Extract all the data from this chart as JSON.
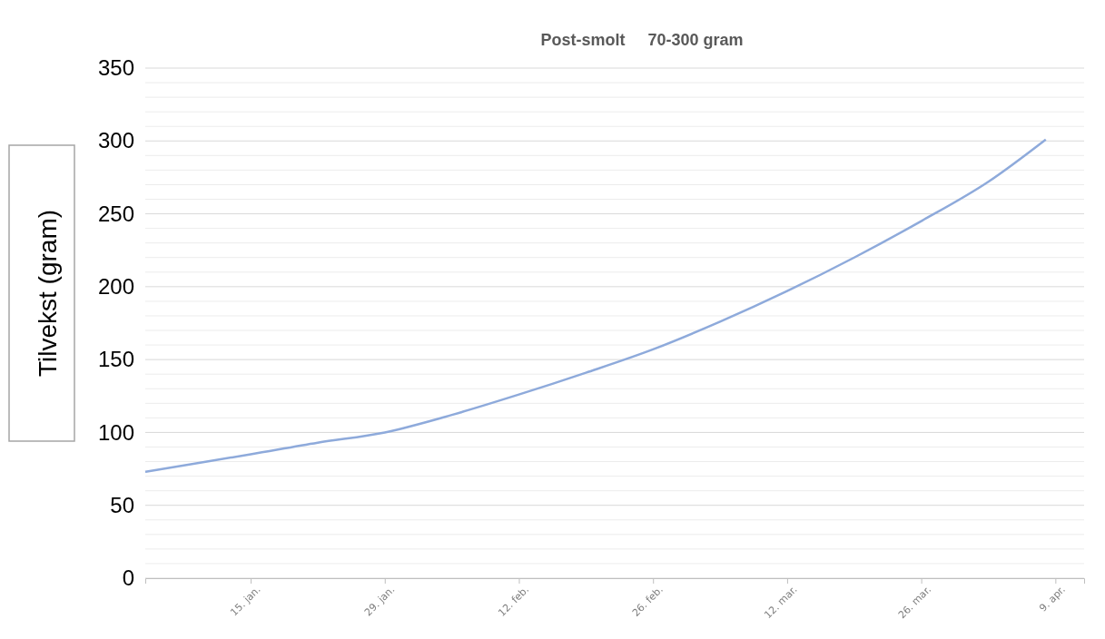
{
  "chart_data": {
    "type": "line",
    "title": "Post-smolt     70-300 gram",
    "ylabel": "Tilvekst (gram)",
    "x": [
      "--01-04",
      "--01-15",
      "--01-22",
      "--01-29",
      "--02-05",
      "--02-12",
      "--02-19",
      "--02-26",
      "--03-05",
      "--03-12",
      "--03-19",
      "--03-26",
      "--04-02",
      "--04-08"
    ],
    "series": [
      {
        "color": "#8eaadb",
        "values": [
          73,
          85,
          93,
          100,
          112,
          126,
          141,
          157,
          176,
          197,
          220,
          245,
          272,
          301
        ]
      }
    ],
    "xlim": [
      "--01-04",
      "--04-12"
    ],
    "xticks": [
      {
        "value": "--01-15",
        "label": "15. jan."
      },
      {
        "value": "--01-29",
        "label": "29. jan."
      },
      {
        "value": "--02-12",
        "label": "12. feb."
      },
      {
        "value": "--02-26",
        "label": "26. feb."
      },
      {
        "value": "--03-12",
        "label": "12. mar."
      },
      {
        "value": "--03-26",
        "label": "26. mar."
      },
      {
        "value": "--04-09",
        "label": "9. apr."
      }
    ],
    "ylim": [
      0,
      350
    ],
    "yticks": [
      0,
      {
        "value": 10,
        "label": null
      },
      {
        "value": 20,
        "label": null
      },
      {
        "value": 30,
        "label": null
      },
      {
        "value": 40,
        "label": null
      },
      50,
      {
        "value": 60,
        "label": null
      },
      {
        "value": 70,
        "label": null
      },
      {
        "value": 80,
        "label": null
      },
      {
        "value": 90,
        "label": null
      },
      100,
      {
        "value": 110,
        "label": null
      },
      {
        "value": 120,
        "label": null
      },
      {
        "value": 130,
        "label": null
      },
      {
        "value": 140,
        "label": null
      },
      150,
      {
        "value": 160,
        "label": null
      },
      {
        "value": 170,
        "label": null
      },
      {
        "value": 180,
        "label": null
      },
      {
        "value": 190,
        "label": null
      },
      200,
      {
        "value": 210,
        "label": null
      },
      {
        "value": 220,
        "label": null
      },
      {
        "value": 230,
        "label": null
      },
      {
        "value": 240,
        "label": null
      },
      250,
      {
        "value": 260,
        "label": null
      },
      {
        "value": 270,
        "label": null
      },
      {
        "value": 280,
        "label": null
      },
      {
        "value": 290,
        "label": null
      },
      300,
      {
        "value": 310,
        "label": null
      },
      {
        "value": 320,
        "label": null
      },
      {
        "value": 330,
        "label": null
      },
      {
        "value": 340,
        "label": null
      },
      350
    ],
    "grid": "y",
    "marker": "none",
    "line_style": "solid"
  }
}
